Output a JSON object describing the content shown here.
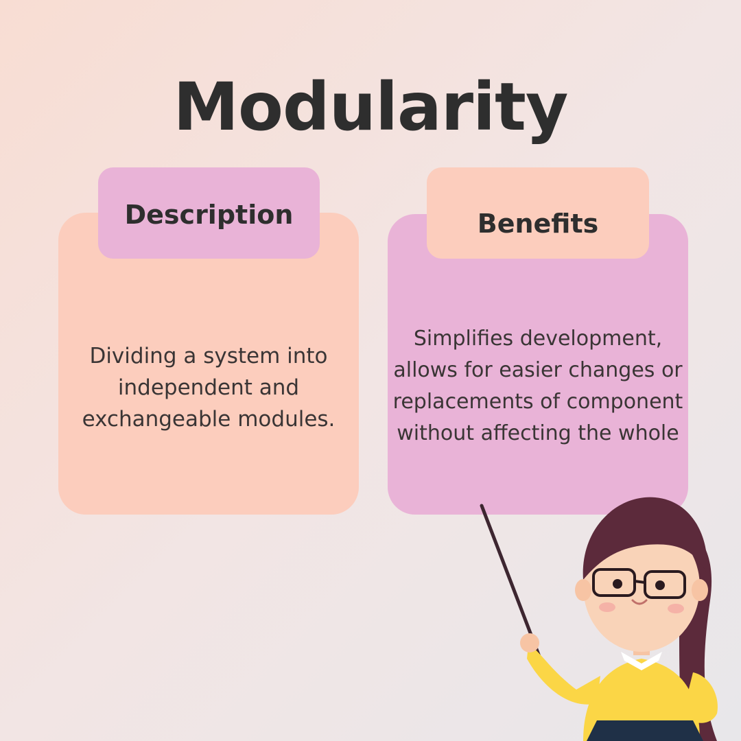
{
  "title": "Modularity",
  "cards": {
    "description": {
      "heading": "Description",
      "text": "Dividing a system into independent and exchangeable modules."
    },
    "benefits": {
      "heading": "Benefits",
      "text": "Simplifies development, allows for easier changes or replacements of component without affecting the whole"
    }
  },
  "colors": {
    "peach": "#fccdbd",
    "pink": "#e9b3d7",
    "text_dark": "#2e2e2e"
  },
  "illustration": "teacher-with-pointer"
}
